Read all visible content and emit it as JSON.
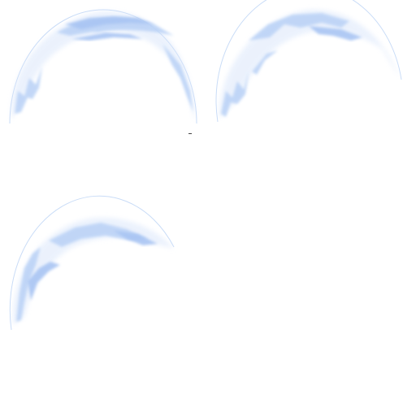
{
  "sheet": {
    "description_free": true,
    "background": "#ffffff",
    "outline_color": "#c9dcf7",
    "streak_color_light": "#dbe7fb",
    "streak_color_main": "#b9d1f6",
    "streak_color_deep": "#a9c5f3",
    "marker_color": "#444444"
  },
  "frames": [
    {
      "id": "frame-1",
      "icon": "slash-arc-icon"
    },
    {
      "id": "frame-2",
      "icon": "slash-arc-icon"
    },
    {
      "id": "frame-3",
      "icon": "slash-arc-icon"
    }
  ]
}
